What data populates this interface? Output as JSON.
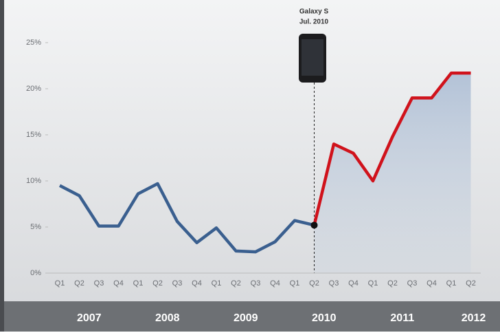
{
  "chart_data": {
    "type": "line",
    "categories": [
      "Q1",
      "Q2",
      "Q3",
      "Q4",
      "Q1",
      "Q2",
      "Q3",
      "Q4",
      "Q1",
      "Q2",
      "Q3",
      "Q4",
      "Q1",
      "Q2",
      "Q3",
      "Q4",
      "Q1",
      "Q2",
      "Q3",
      "Q4",
      "Q1",
      "Q2"
    ],
    "year_labels": [
      "2007",
      "2008",
      "2009",
      "2010",
      "2011",
      "2012"
    ],
    "series": [
      {
        "color": "#3a5f8f",
        "values": [
          9.5,
          8.4,
          5.1,
          5.1,
          8.6,
          9.7,
          5.6,
          3.3,
          4.9,
          2.4,
          2.3,
          3.4,
          5.7,
          5.2,
          null,
          null,
          null,
          null,
          null,
          null,
          null,
          null
        ]
      },
      {
        "color": "#d0121b",
        "values": [
          null,
          null,
          null,
          null,
          null,
          null,
          null,
          null,
          null,
          null,
          null,
          null,
          null,
          5.2,
          14.0,
          13.0,
          10.0,
          14.8,
          19.0,
          19.0,
          21.7,
          21.7
        ]
      }
    ],
    "annotation": [
      "Galaxy S",
      "Jul. 2010"
    ],
    "ylim": [
      0,
      25
    ],
    "yticks": [
      {
        "value": 0,
        "label": "0%"
      },
      {
        "value": 5,
        "label": "5%"
      },
      {
        "value": 10,
        "label": "10%"
      },
      {
        "value": 15,
        "label": "15%"
      },
      {
        "value": 20,
        "label": "20%"
      },
      {
        "value": 25,
        "label": "25%"
      }
    ]
  }
}
